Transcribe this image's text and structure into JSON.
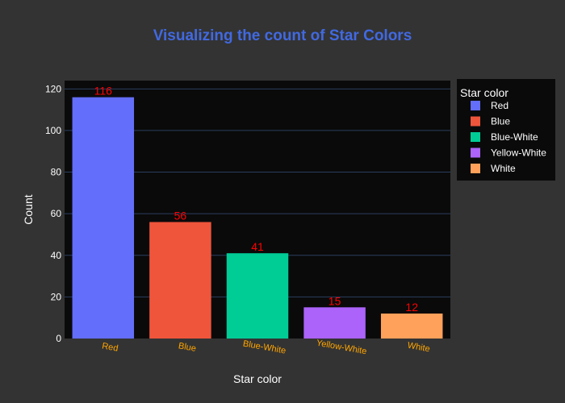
{
  "chart_data": {
    "type": "bar",
    "title": "Visualizing the count of Star Colors",
    "xlabel": "Star color",
    "ylabel": "Count",
    "categories": [
      "Red",
      "Blue",
      "Blue-White",
      "Yellow-White",
      "White"
    ],
    "values": [
      116,
      56,
      41,
      15,
      12
    ],
    "data_labels": [
      "116",
      "56",
      "41",
      "15",
      "12"
    ],
    "ylim": [
      0,
      124
    ],
    "yticks": [
      0,
      20,
      40,
      60,
      80,
      100,
      120
    ],
    "ytick_labels": [
      "0",
      "20",
      "40",
      "60",
      "80",
      "100",
      "120"
    ],
    "grid": true,
    "legend": {
      "title": "Star color",
      "placement": "right",
      "entries": [
        "Red",
        "Blue",
        "Blue-White",
        "Yellow-White",
        "White"
      ]
    },
    "colors": [
      "#636efa",
      "#ef553b",
      "#00cc96",
      "#ab63fa",
      "#ffa15a"
    ],
    "label_color": "#ff0000",
    "tick_label_color": "#ffa500",
    "title_color": "#4169e1",
    "plot_bg": "#0a0a0a",
    "paper_bg": "#333333"
  }
}
